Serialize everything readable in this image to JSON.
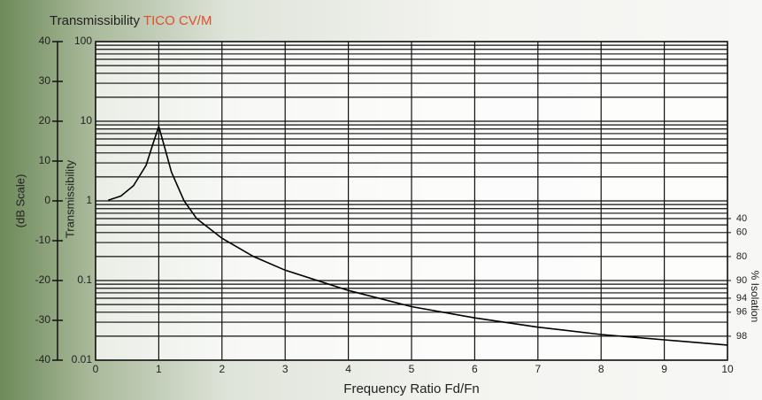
{
  "chart_data": {
    "type": "line",
    "title": "Transmissibility",
    "title_highlight": "TICO CV/M",
    "x_label": "Frequency Ratio Fd/Fn",
    "y_label": "Transmissibility",
    "y_db_label": "(dB Scale)",
    "y2_label": "% Isolation",
    "x": [
      0.2,
      0.4,
      0.6,
      0.8,
      0.9,
      1.0,
      1.1,
      1.2,
      1.4,
      1.6,
      2,
      2.5,
      3,
      4,
      5,
      6,
      7,
      8,
      9,
      10
    ],
    "values": [
      1.02,
      1.15,
      1.55,
      2.8,
      5,
      8.6,
      4.5,
      2.3,
      1.0,
      0.6,
      0.34,
      0.2,
      0.135,
      0.075,
      0.047,
      0.034,
      0.026,
      0.021,
      0.018,
      0.0155
    ],
    "color": "#000000",
    "xlim": [
      0,
      10
    ],
    "xticks": [
      0,
      1,
      2,
      3,
      4,
      5,
      6,
      7,
      8,
      9,
      10
    ],
    "ylim": [
      0.01,
      100
    ],
    "yticks": [
      100,
      10,
      1,
      0.1,
      0.01
    ],
    "log_y": true,
    "grid": true,
    "y_db_lim": [
      -40,
      40
    ],
    "y_db_ticks": [
      40,
      30,
      20,
      10,
      0,
      -10,
      -20,
      -30,
      -40
    ],
    "y2ticks": [
      40,
      60,
      80,
      90,
      94,
      96,
      98
    ]
  }
}
